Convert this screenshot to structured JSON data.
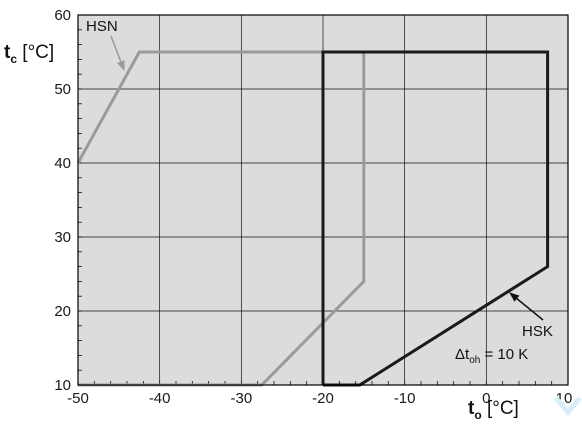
{
  "chart_data": {
    "type": "line",
    "xlim": [
      -50,
      10
    ],
    "ylim": [
      10,
      60
    ],
    "x_ticks": [
      -50,
      -40,
      -30,
      -20,
      -10,
      0,
      10
    ],
    "y_ticks": [
      10,
      20,
      30,
      40,
      50,
      60
    ],
    "x_tick_labels": [
      "-50",
      "-40",
      "-30",
      "-20",
      "-10",
      "0",
      "10"
    ],
    "y_tick_labels": [
      "10",
      "20",
      "30",
      "40",
      "50",
      "60"
    ],
    "grid": true,
    "xlabel": {
      "main": "t",
      "sub": "o",
      "unit": " [°C]"
    },
    "ylabel": {
      "main": "t",
      "sub": "c",
      "unit": " [°C]"
    },
    "series": [
      {
        "name": "HSN",
        "color": "#9a9a9a",
        "points": [
          [
            -50,
            40
          ],
          [
            -42.5,
            55
          ],
          [
            -15,
            55
          ],
          [
            -15,
            24
          ],
          [
            -27.5,
            10
          ],
          [
            -50,
            10
          ]
        ]
      },
      {
        "name": "HSK",
        "color": "#1a1a1a",
        "points": [
          [
            -20,
            10
          ],
          [
            -20,
            55
          ],
          [
            7.5,
            55
          ],
          [
            7.5,
            26
          ],
          [
            -15.5,
            10
          ],
          [
            -20,
            10
          ]
        ]
      }
    ],
    "annotations": {
      "hsn_label": "HSN",
      "hsk_label": "HSK",
      "delta_main": "Δt",
      "delta_sub": "oh",
      "delta_value": " = 10 K"
    }
  }
}
